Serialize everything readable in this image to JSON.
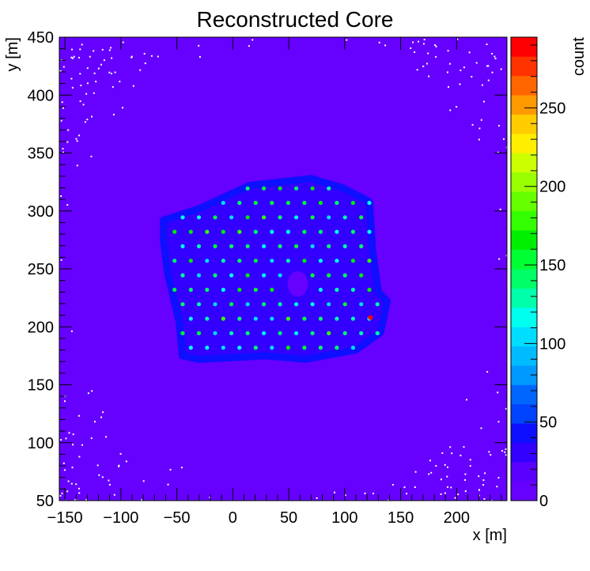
{
  "chart_data": {
    "type": "heatmap",
    "title": "Reconstructed Core",
    "xlabel": "x [m]",
    "ylabel": "y [m]",
    "zlabel": "count",
    "xlim": [
      -155,
      245
    ],
    "ylim": [
      50,
      450
    ],
    "zlim": [
      0,
      295
    ],
    "x_ticks": [
      -150,
      -100,
      -50,
      0,
      50,
      100,
      150,
      200
    ],
    "x_tick_labels": [
      "−150",
      "−100",
      "−50",
      "0",
      "50",
      "100",
      "150",
      "200"
    ],
    "y_ticks": [
      50,
      100,
      150,
      200,
      250,
      300,
      350,
      400,
      450
    ],
    "y_tick_labels": [
      "50",
      "100",
      "150",
      "200",
      "250",
      "300",
      "350",
      "400",
      "450"
    ],
    "z_ticks": [
      0,
      50,
      100,
      150,
      200,
      250
    ],
    "z_tick_labels": [
      "0",
      "50",
      "100",
      "150",
      "200",
      "250"
    ],
    "palette": [
      "#6600ff",
      "#5a00ff",
      "#3300ff",
      "#0f0fff",
      "#0044ff",
      "#0066ff",
      "#0099ff",
      "#00bbff",
      "#00ddff",
      "#00ffee",
      "#00ffaa",
      "#00ff66",
      "#00ff33",
      "#00ee00",
      "#33ff00",
      "#66ff00",
      "#99ff00",
      "#ccff00",
      "#ffee00",
      "#ffcc00",
      "#ff9900",
      "#ff6600",
      "#ff3300",
      "#ff0000"
    ],
    "background_count": 3,
    "array_outline": [
      [
        -62,
        292
      ],
      [
        -30,
        302
      ],
      [
        15,
        322
      ],
      [
        70,
        328
      ],
      [
        98,
        320
      ],
      [
        122,
        308
      ],
      [
        125,
        265
      ],
      [
        130,
        230
      ],
      [
        138,
        222
      ],
      [
        132,
        195
      ],
      [
        110,
        180
      ],
      [
        65,
        172
      ],
      [
        30,
        175
      ],
      [
        -30,
        172
      ],
      [
        -45,
        175
      ],
      [
        -48,
        205
      ],
      [
        -58,
        245
      ],
      [
        -62,
        275
      ]
    ],
    "array_rim_count": 40,
    "array_interior_count": 25,
    "detector_hit_count": 140,
    "detector_spacing": [
      14.5,
      12.5
    ],
    "hole_center": [
      58,
      237
    ],
    "hole_radius": 13,
    "hot_spot": [
      123,
      208
    ],
    "hot_spot_count": 285
  }
}
